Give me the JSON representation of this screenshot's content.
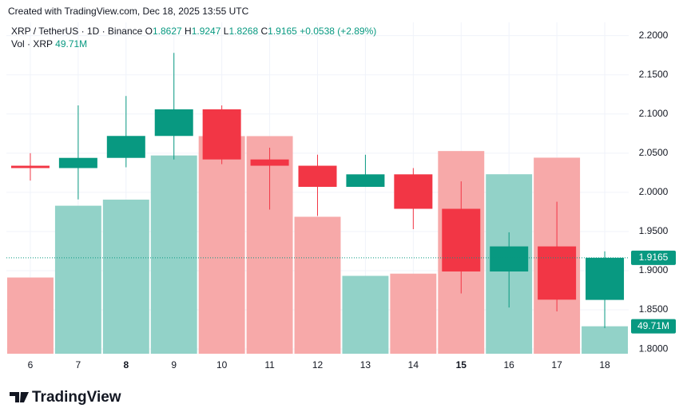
{
  "header": {
    "created": "Created with TradingView.com, Dec 18, 2025 13:55 UTC",
    "logo": "TradingView"
  },
  "chart_data": {
    "type": "candlestick",
    "symbol": "XRP / TetherUS · 1D · Binance",
    "ohlc_labels": [
      "O",
      "H",
      "L",
      "C"
    ],
    "change": "+0.0538 (+2.89%)",
    "volume_label": "Vol · XRP",
    "up_color": "#089981",
    "down_color": "#f23645",
    "volume_up_color": "#92d2c8",
    "volume_down_color": "#f7a9a9",
    "categories": [
      "6",
      "7",
      "8",
      "9",
      "10",
      "11",
      "12",
      "13",
      "14",
      "15",
      "16",
      "17",
      "18"
    ],
    "open": [
      2.034,
      2.031,
      2.044,
      2.072,
      2.106,
      2.042,
      2.034,
      2.007,
      2.023,
      1.979,
      1.899,
      1.931,
      1.8627
    ],
    "high": [
      2.05,
      2.111,
      2.123,
      2.178,
      2.111,
      2.057,
      2.048,
      2.048,
      2.031,
      2.014,
      1.949,
      1.988,
      1.9247
    ],
    "low": [
      2.015,
      1.991,
      2.032,
      2.042,
      2.036,
      1.978,
      1.97,
      2.007,
      1.953,
      1.871,
      1.853,
      1.848,
      1.8268
    ],
    "close": [
      2.031,
      2.044,
      2.072,
      2.106,
      2.042,
      2.034,
      2.007,
      2.023,
      1.979,
      1.899,
      1.931,
      1.863,
      1.9165
    ],
    "volume": {
      "values": [
        138,
        268,
        279,
        359,
        394,
        394,
        248,
        141,
        145,
        367,
        325,
        355,
        49.71
      ],
      "value_labels": [
        null,
        null,
        null,
        null,
        null,
        null,
        null,
        null,
        null,
        null,
        null,
        null,
        "49.71M"
      ]
    },
    "ylim": [
      1.794,
      2.217
    ],
    "yticks": [
      {
        "value": 1.8,
        "label": "1.8000"
      },
      {
        "value": 1.85,
        "label": "1.8500"
      },
      {
        "value": 1.9,
        "label": "1.9000"
      },
      {
        "value": 1.95,
        "label": "1.9500"
      },
      {
        "value": 2.0,
        "label": "2.0000"
      },
      {
        "value": 2.05,
        "label": "2.0500"
      },
      {
        "value": 2.1,
        "label": "2.1000"
      },
      {
        "value": 2.15,
        "label": "2.1500"
      },
      {
        "value": 2.2,
        "label": "2.2000"
      }
    ],
    "volume_ylim": [
      0,
      600
    ],
    "grid": true
  }
}
